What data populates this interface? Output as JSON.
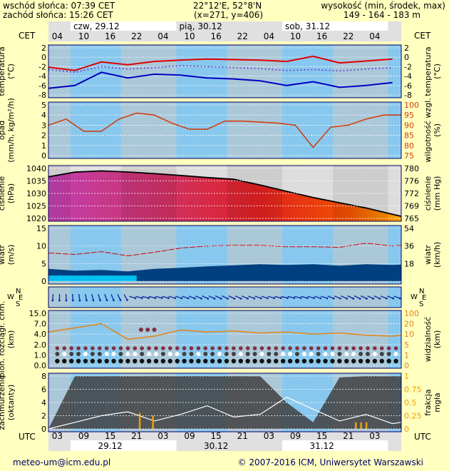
{
  "header": {
    "sunrise": "wschód słońca: 07:39 CET",
    "sunset": "zachód słońca: 15:26 CET",
    "coords": "22°12'E, 52°8'N",
    "grid": "(x=271,  y=406)",
    "elevation_label": "wysokość (min, środek, max)",
    "elevation_values": "149 - 164 - 183 m"
  },
  "footer": {
    "email": "meteo-um@icm.edu.pl",
    "copyright": "© 2007-2016 ICM, Uniwersytet Warszawski"
  },
  "timeline": {
    "top_tz": "CET",
    "bottom_tz": "UTC",
    "top_days": [
      "czw, 29.12",
      "pią, 30.12",
      "sob, 31.12"
    ],
    "bottom_days": [
      "29.12",
      "30.12",
      "31.12"
    ],
    "top_hours": [
      "04",
      "10",
      "16",
      "22",
      "04",
      "10",
      "16",
      "22",
      "04",
      "10",
      "16",
      "22",
      "04"
    ],
    "bottom_hours": [
      "03",
      "09",
      "15",
      "21",
      "03",
      "09",
      "15",
      "21",
      "03",
      "09",
      "15",
      "21",
      "03"
    ]
  },
  "colors": {
    "panel_blue": "#88c8ee",
    "night_gray": "#c8c8c8",
    "temp_red": "#e00000",
    "temp_blue": "#0000c0",
    "humidity": "#d04010",
    "wind_light": "#00c0f0",
    "wind_dark": "#004080",
    "visibility": "#e08820",
    "cloud_dark": "#404040",
    "fog": "#f0a000",
    "frame": "#000066"
  },
  "chart_data": [
    {
      "type": "line",
      "panel": "temperature",
      "ylabel_left": "temperatura (°C)",
      "ylabel_right": "temperatura (°C)",
      "ylim": [
        -8,
        2
      ],
      "yticks": [
        "2",
        "0",
        "-2",
        "-4",
        "-6",
        "-8"
      ],
      "x_hours": [
        0,
        6,
        12,
        18,
        24,
        30,
        36,
        42,
        48,
        54,
        60,
        66,
        72,
        78
      ],
      "series": [
        {
          "values": [
            -2.1,
            -2.8,
            -1.0,
            -1.6,
            -0.9,
            -0.6,
            -0.4,
            -0.5,
            -0.6,
            -0.9,
            0.2,
            -1.2,
            -0.8,
            -0.4
          ]
        },
        {
          "values": [
            -2.6,
            -3.2,
            -2.0,
            -2.5,
            -2.2,
            -1.8,
            -2.0,
            -2.2,
            -2.4,
            -2.8,
            -2.6,
            -2.9,
            -2.5,
            -2.2
          ]
        },
        {
          "values": [
            -6.6,
            -6.0,
            -3.2,
            -4.4,
            -3.6,
            -3.8,
            -4.4,
            -4.6,
            -5.0,
            -6.0,
            -5.2,
            -6.4,
            -6.0,
            -5.4
          ]
        }
      ]
    },
    {
      "type": "line",
      "panel": "precipitation_humidity",
      "ylabel_left": "opad (mm/h, kg/m²/h)",
      "ylabel_right": "wilgotność wzgl. (%)",
      "ylim_left": [
        0,
        5
      ],
      "yticks_left": [
        "5",
        "4",
        "3",
        "2",
        "1",
        "0"
      ],
      "ylim_right": [
        75,
        100
      ],
      "yticks_right": [
        "100",
        "95",
        "90",
        "85",
        "80",
        "75"
      ],
      "x_hours": [
        0,
        4,
        8,
        12,
        16,
        20,
        24,
        28,
        32,
        36,
        40,
        44,
        48,
        52,
        56,
        60,
        64,
        68,
        72,
        76,
        80
      ],
      "series": [
        {
          "values": [
            90,
            93,
            87,
            87,
            93,
            96,
            95,
            91,
            88,
            88,
            92,
            92,
            91.5,
            91,
            90,
            79,
            89,
            90,
            93,
            95,
            95
          ]
        }
      ]
    },
    {
      "type": "area",
      "panel": "pressure",
      "ylabel_left": "ciśnienie (hPa)",
      "ylabel_right": "ciśnienie (mm Hg)",
      "ylim": [
        1018,
        1042
      ],
      "yticks_left": [
        "1040",
        "1035",
        "1030",
        "1025",
        "1020"
      ],
      "yticks_right": [
        "780",
        "776",
        "772",
        "769",
        "765"
      ],
      "x_hours": [
        0,
        6,
        12,
        18,
        24,
        30,
        36,
        42,
        48,
        54,
        60,
        66,
        72,
        78,
        80
      ],
      "series": [
        {
          "values": [
            1038,
            1040.2,
            1040.8,
            1040.3,
            1039.5,
            1038.6,
            1037.6,
            1036.8,
            1034,
            1031,
            1028,
            1025.5,
            1023,
            1020,
            1019
          ]
        }
      ]
    },
    {
      "type": "area",
      "panel": "wind_speed",
      "ylabel_left": "wiatr (m/s)",
      "ylabel_right": "wiatr (km/h)",
      "ylim": [
        0,
        15
      ],
      "yticks_left": [
        "15",
        "10",
        "5",
        "0"
      ],
      "yticks_right": [
        "54",
        "36",
        "18"
      ],
      "x_hours": [
        0,
        6,
        12,
        18,
        24,
        30,
        36,
        42,
        48,
        54,
        60,
        66,
        72,
        78,
        80
      ],
      "series": [
        {
          "values": [
            3.5,
            3.0,
            3.2,
            2.8,
            3.5,
            3.8,
            4.2,
            4.5,
            4.8,
            4.6,
            4.8,
            4.4,
            4.8,
            4.6,
            4.7
          ]
        },
        {
          "values": [
            8.0,
            7.6,
            8.4,
            7.2,
            8.2,
            9.4,
            10.0,
            10.2,
            10.2,
            9.8,
            9.8,
            9.6,
            10.8,
            10.0,
            10.2
          ]
        }
      ]
    },
    {
      "type": "line",
      "panel": "wind_direction",
      "ylabel_left": "WSEN",
      "ylabel_right": "WSEN",
      "compass": [
        "N",
        "W",
        "E",
        "S"
      ]
    },
    {
      "type": "scatter",
      "panel": "cloud_base_visibility",
      "ylabel_left": "pion. rozciągł. chm. (km)",
      "ylabel_right": "widzialność (km)",
      "yticks_left": [
        "15.0",
        "7.0",
        "4.0",
        "2.0",
        "1.0",
        "0.0"
      ],
      "yticks_right": [
        "100",
        "20",
        "10",
        "5",
        "1",
        "0"
      ],
      "x_hours": [
        0,
        6,
        12,
        18,
        24,
        30,
        36,
        42,
        48,
        54,
        60,
        66,
        72,
        78,
        80
      ],
      "series": [
        {
          "values": [
            6.4,
            7.2,
            8.0,
            5.0,
            5.6,
            6.8,
            6.4,
            6.6,
            6.2,
            6.4,
            6.0,
            6.2,
            5.8,
            5.6,
            5.8
          ]
        }
      ]
    },
    {
      "type": "area",
      "panel": "cloud_cover_fog",
      "ylabel_left": "zachmurzenie (oktanty)",
      "ylabel_right": "frakcja mgła",
      "ylim": [
        0,
        8
      ],
      "yticks_left": [
        "8",
        "6",
        "4",
        "2",
        "0"
      ],
      "yticks_right": [
        "1",
        "0.75",
        "0.5",
        "0.25",
        "0"
      ],
      "x_hours": [
        0,
        6,
        12,
        18,
        24,
        30,
        36,
        42,
        48,
        54,
        60,
        66,
        72,
        78,
        80
      ],
      "series": [
        {
          "values": [
            0,
            8,
            8,
            8,
            8,
            8,
            8,
            8,
            8,
            4,
            1,
            7.8,
            8,
            8,
            8
          ]
        },
        {
          "values": [
            0,
            1.0,
            2.0,
            2.6,
            1.2,
            2.2,
            3.5,
            1.8,
            2.2,
            4.8,
            3.0,
            1.2,
            2.2,
            0.8,
            1.0
          ]
        }
      ]
    }
  ]
}
